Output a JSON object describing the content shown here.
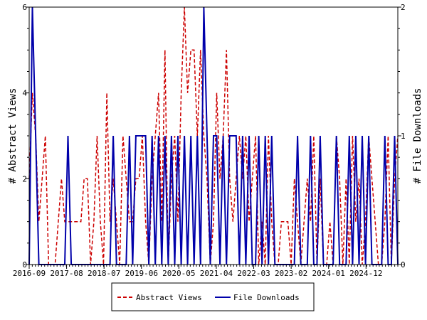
{
  "chart_data": {
    "type": "line",
    "dual_axis": true,
    "x_ticks": [
      "2016-09",
      "2017-08",
      "2018-07",
      "2019-06",
      "2020-05",
      "2021-04",
      "2022-03",
      "2023-02",
      "2024-01",
      "2024-12"
    ],
    "y_left": {
      "label": "# Abstract Views",
      "ylim": [
        0,
        6
      ],
      "ticks": [
        "0",
        "2",
        "4",
        "6"
      ]
    },
    "y_right": {
      "label": "# File Downloads",
      "ylim": [
        0,
        2
      ],
      "ticks": [
        "0",
        "1",
        "2"
      ]
    },
    "grid": false,
    "legend_position": "bottom",
    "series": [
      {
        "name": "Abstract Views",
        "axis": "left",
        "color": "#cc0000",
        "style": "dashed",
        "values": [
          2,
          4,
          3,
          1,
          2,
          3,
          0,
          0,
          0,
          1,
          2,
          1,
          1,
          1,
          1,
          1,
          1,
          2,
          2,
          0,
          1,
          3,
          1,
          0,
          4,
          1,
          2,
          1,
          0,
          3,
          2,
          1,
          1,
          2,
          2,
          3,
          1,
          0,
          2,
          3,
          4,
          1,
          5,
          0,
          2,
          3,
          1,
          4,
          6,
          4,
          5,
          5,
          3,
          5,
          3,
          2,
          0,
          1,
          4,
          2,
          3,
          5,
          2,
          1,
          2,
          3,
          2,
          3,
          1,
          2,
          3,
          0,
          1,
          0,
          3,
          1,
          0,
          0,
          1,
          1,
          1,
          0,
          2,
          1,
          0,
          1,
          2,
          1,
          3,
          0,
          2,
          0,
          0,
          1,
          0,
          3,
          2,
          0,
          2,
          0,
          3,
          1,
          2,
          0,
          1,
          3,
          2,
          1,
          0,
          0,
          1,
          3,
          0,
          2,
          3
        ]
      },
      {
        "name": "File Downloads",
        "axis": "right",
        "color": "#0000aa",
        "style": "solid",
        "values": [
          0,
          2,
          1,
          0,
          0,
          0,
          0,
          0,
          0,
          0,
          0,
          0,
          1,
          0,
          0,
          0,
          0,
          0,
          0,
          0,
          0,
          0,
          0,
          0,
          0,
          0,
          1,
          0,
          0,
          0,
          0,
          1,
          0,
          1,
          1,
          1,
          1,
          0,
          1,
          0,
          1,
          0,
          1,
          0,
          1,
          0,
          1,
          0,
          1,
          0,
          1,
          0,
          1,
          0,
          2,
          1,
          0,
          1,
          1,
          0,
          1,
          0,
          1,
          1,
          1,
          0,
          1,
          0,
          1,
          0,
          0,
          1,
          0,
          1,
          0,
          1,
          0,
          0,
          0,
          0,
          0,
          0,
          0,
          1,
          0,
          0,
          0,
          1,
          0,
          0,
          1,
          0,
          0,
          0,
          0,
          1,
          0,
          0,
          0,
          1,
          0,
          1,
          0,
          1,
          0,
          1,
          0,
          0,
          0,
          0,
          1,
          0,
          0,
          1,
          0
        ]
      }
    ]
  }
}
